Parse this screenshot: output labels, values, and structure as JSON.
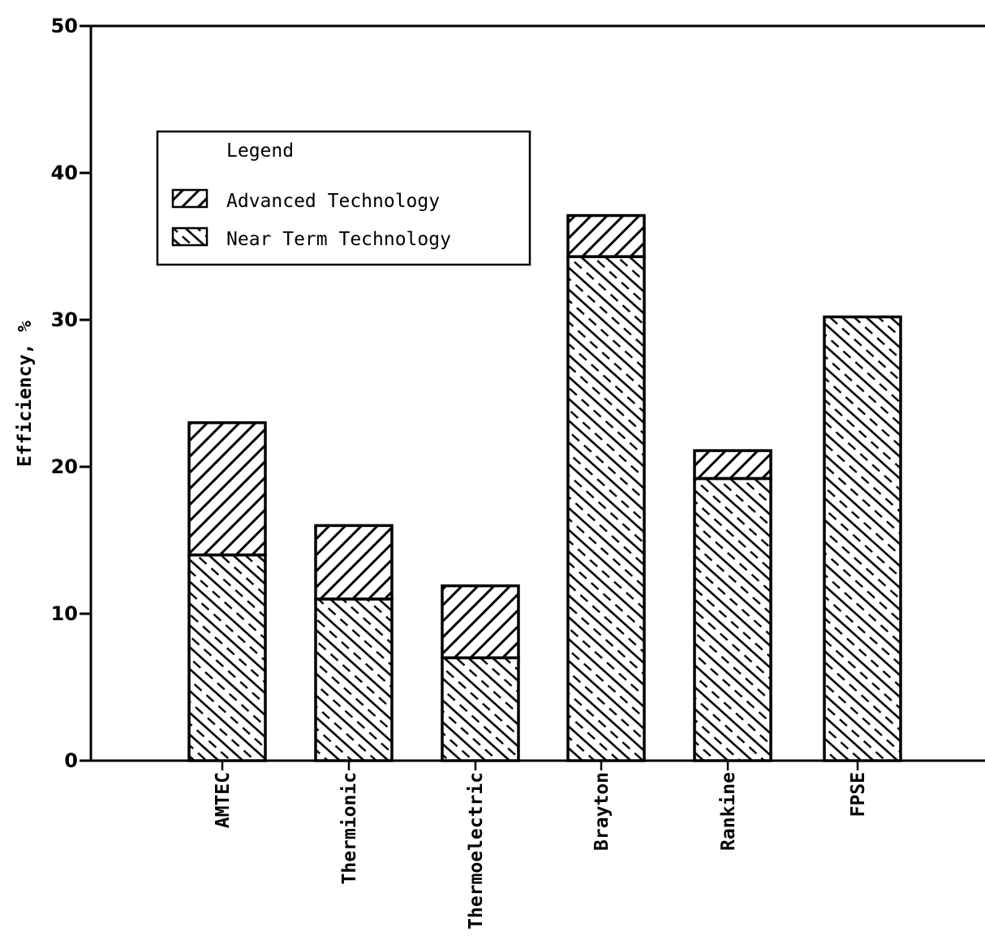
{
  "chart_data": {
    "type": "bar",
    "stacked": true,
    "title": "",
    "xlabel": "",
    "ylabel": "Efficiency, %",
    "ylim": [
      0,
      50
    ],
    "yticks": [
      0,
      10,
      20,
      30,
      40,
      50
    ],
    "grid": false,
    "legend_position": "top-left",
    "categories": [
      "AMTEC",
      "Thermionic",
      "Thermoelectric",
      "Brayton",
      "Rankine",
      "FPSE"
    ],
    "series": [
      {
        "name": "Near Term Technology",
        "values": [
          14,
          11,
          7,
          34.3,
          19.2,
          30.2
        ],
        "pattern": "dashed-diagonal-hatch"
      },
      {
        "name": "Advanced Technology",
        "values": [
          9,
          5,
          4.9,
          2.8,
          1.9,
          0
        ],
        "pattern": "back-diagonal-hatch"
      }
    ],
    "legend": {
      "title": "Legend",
      "entries": [
        "Advanced Technology",
        "Near Term Technology"
      ]
    }
  }
}
